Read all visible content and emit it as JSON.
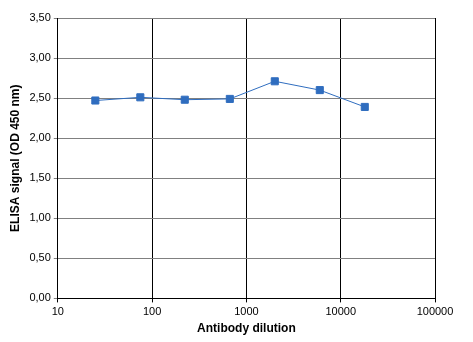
{
  "chart_data": {
    "type": "line",
    "x_label": "Antibody dilution",
    "y_label": "ELISA signal (OD 450 nm)",
    "x": [
      25,
      75,
      222,
      667,
      2000,
      6000,
      18000
    ],
    "values": [
      2.47,
      2.51,
      2.48,
      2.49,
      2.71,
      2.6,
      2.39
    ],
    "color": "#2f6dbf",
    "marker": "square",
    "log": "x",
    "xlim": [
      10,
      100000
    ],
    "xticks": [
      10,
      100,
      1000,
      10000,
      100000
    ],
    "ylim": [
      0,
      3.5
    ],
    "yticks": [
      {
        "value": 0,
        "label": "0,00"
      },
      {
        "value": 0.5,
        "label": "0,50"
      },
      {
        "value": 1,
        "label": "1,00"
      },
      {
        "value": 1.5,
        "label": "1,50"
      },
      {
        "value": 2,
        "label": "2,00"
      },
      {
        "value": 2.5,
        "label": "2,50"
      },
      {
        "value": 3,
        "label": "3,00"
      },
      {
        "value": 3.5,
        "label": "3,50"
      }
    ],
    "grid": true
  }
}
